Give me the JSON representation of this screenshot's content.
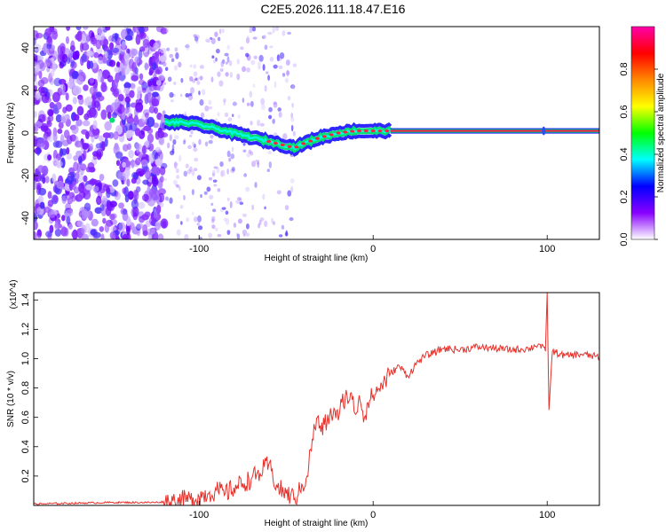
{
  "title": "C2E5.2026.111.18.47.E16",
  "chart_data": [
    {
      "type": "heatmap",
      "xlabel": "Height of straight line (km)",
      "ylabel": "Frequency (Hz)",
      "xlim": [
        -195,
        130
      ],
      "ylim": [
        -50,
        50
      ],
      "xticks": [
        -100,
        0,
        100
      ],
      "xtick_labels": [
        "-100",
        "0",
        "100"
      ],
      "yticks": [
        -40,
        -20,
        0,
        20,
        40
      ],
      "ytick_labels": [
        "-40",
        "-20",
        "0",
        "20",
        "40"
      ],
      "colorbar": {
        "label": "Normalized spectral amplitude",
        "range": [
          0,
          1
        ],
        "ticks": [
          0.0,
          0.2,
          0.4,
          0.6,
          0.8
        ],
        "tick_labels": [
          "0.0",
          "0.2",
          "0.4",
          "0.6",
          "0.8"
        ],
        "colormap": [
          "#ffffff",
          "#8800ff",
          "#0000ff",
          "#00ffff",
          "#00ff00",
          "#ffff00",
          "#ff8800",
          "#ff0000",
          "#ff00aa"
        ]
      },
      "signal_track": {
        "x": [
          -120,
          -110,
          -100,
          -90,
          -80,
          -70,
          -60,
          -50,
          -45,
          -40,
          -30,
          -20,
          -10,
          0,
          10,
          20,
          50,
          100,
          130
        ],
        "frequency": [
          5,
          5,
          4,
          2,
          0,
          -2,
          -4,
          -6,
          -7,
          -5,
          -2,
          0,
          1,
          1,
          1,
          1,
          1,
          1,
          1
        ]
      }
    },
    {
      "type": "line",
      "title": "",
      "xlabel": "Height of straight line (km)",
      "ylabel": "SNR (10 * v/v)",
      "scale_label": "(x10^4)",
      "xlim": [
        -195,
        130
      ],
      "ylim": [
        0,
        1.45
      ],
      "xticks": [
        -100,
        0,
        100
      ],
      "xtick_labels": [
        "-100",
        "0",
        "100"
      ],
      "yticks": [
        0.2,
        0.4,
        0.6,
        0.8,
        1.0,
        1.2,
        1.4
      ],
      "ytick_labels": [
        "0.2",
        "0.4",
        "0.6",
        "0.8",
        "1.0",
        "1.2",
        "1.4"
      ],
      "series": [
        {
          "name": "SNR",
          "color": "#e8302a",
          "x": [
            -195,
            -150,
            -125,
            -115,
            -105,
            -100,
            -95,
            -90,
            -85,
            -80,
            -75,
            -70,
            -65,
            -60,
            -55,
            -50,
            -45,
            -42,
            -38,
            -35,
            -32,
            -30,
            -28,
            -25,
            -22,
            -20,
            -18,
            -15,
            -12,
            -10,
            -8,
            -5,
            -3,
            0,
            5,
            10,
            15,
            20,
            25,
            30,
            35,
            40,
            50,
            60,
            70,
            80,
            90,
            95,
            99,
            100,
            101,
            103,
            110,
            120,
            130
          ],
          "values": [
            0.01,
            0.02,
            0.02,
            0.03,
            0.04,
            0.06,
            0.08,
            0.1,
            0.08,
            0.12,
            0.15,
            0.18,
            0.22,
            0.28,
            0.12,
            0.08,
            0.05,
            0.1,
            0.2,
            0.45,
            0.6,
            0.5,
            0.55,
            0.6,
            0.65,
            0.58,
            0.7,
            0.75,
            0.72,
            0.62,
            0.75,
            0.6,
            0.7,
            0.75,
            0.82,
            0.9,
            0.95,
            0.88,
            0.97,
            1.02,
            1.04,
            1.07,
            1.06,
            1.08,
            1.07,
            1.06,
            1.07,
            1.1,
            1.05,
            1.45,
            0.65,
            1.05,
            1.02,
            1.03,
            1.01
          ]
        }
      ]
    }
  ]
}
